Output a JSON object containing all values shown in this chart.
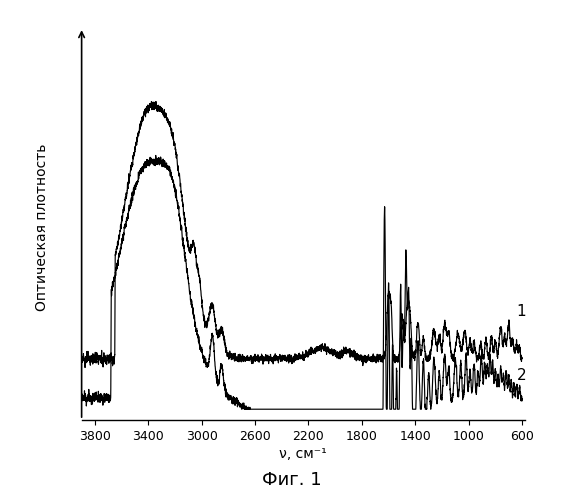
{
  "title": "Фиг. 1",
  "ylabel": "Оптическая плотность",
  "xlabel": "ν, см⁻¹",
  "xlim": [
    3900,
    580
  ],
  "xticks": [
    3800,
    3400,
    3000,
    2600,
    2200,
    1800,
    1400,
    1000,
    600
  ],
  "background_color": "#ffffff",
  "line_color": "#000000",
  "label1": "1",
  "label2": "2"
}
